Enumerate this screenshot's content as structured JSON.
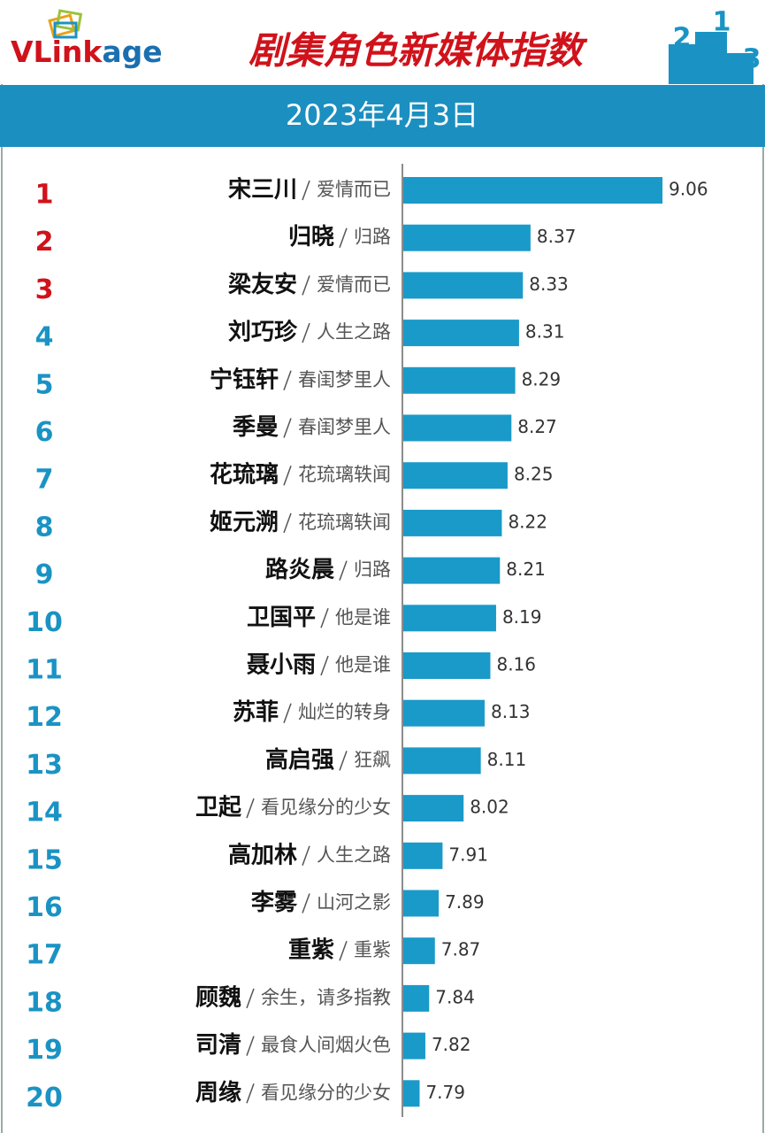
{
  "chart_data": {
    "type": "bar",
    "orientation": "horizontal",
    "logo": [
      "VLink",
      "age"
    ],
    "title": "剧集角色新媒体指数",
    "podium_labels": [
      "2",
      "1",
      "3"
    ],
    "subtitle": "2023年4月3日",
    "ranks": [
      1,
      2,
      3,
      4,
      5,
      6,
      7,
      8,
      9,
      10,
      11,
      12,
      13,
      14,
      15,
      16,
      17,
      18,
      19,
      20
    ],
    "rank_colors": [
      "#d0121b",
      "#d0121b",
      "#d0121b",
      "#1a93c4",
      "#1a93c4",
      "#1a93c4",
      "#1a93c4",
      "#1a93c4",
      "#1a93c4",
      "#1a93c4",
      "#1a93c4",
      "#1a93c4",
      "#1a93c4",
      "#1a93c4",
      "#1a93c4",
      "#1a93c4",
      "#1a93c4",
      "#1a93c4",
      "#1a93c4",
      "#1a93c4"
    ],
    "categories": [
      "宋三川",
      "归晓",
      "梁友安",
      "刘巧珍",
      "宁钰轩",
      "季曼",
      "花琉璃",
      "姬元溯",
      "路炎晨",
      "卫国平",
      "聂小雨",
      "苏菲",
      "高启强",
      "卫起",
      "高加林",
      "李雾",
      "重紫",
      "顾魏",
      "司清",
      "周缘"
    ],
    "shows": [
      "爱情而已",
      "归路",
      "爱情而已",
      "人生之路",
      "春闺梦里人",
      "春闺梦里人",
      "花琉璃轶闻",
      "花琉璃轶闻",
      "归路",
      "他是谁",
      "他是谁",
      "灿烂的转身",
      "狂飙",
      "看见缘分的少女",
      "人生之路",
      "山河之影",
      "重紫",
      "余生，请多指教",
      "最食人间烟火色",
      "看见缘分的少女"
    ],
    "values": [
      9.06,
      8.37,
      8.33,
      8.31,
      8.29,
      8.27,
      8.25,
      8.22,
      8.21,
      8.19,
      8.16,
      8.13,
      8.11,
      8.02,
      7.91,
      7.89,
      7.87,
      7.84,
      7.82,
      7.79
    ],
    "color": "#1a9ac9",
    "xlim": [
      7.7,
      9.3
    ]
  }
}
